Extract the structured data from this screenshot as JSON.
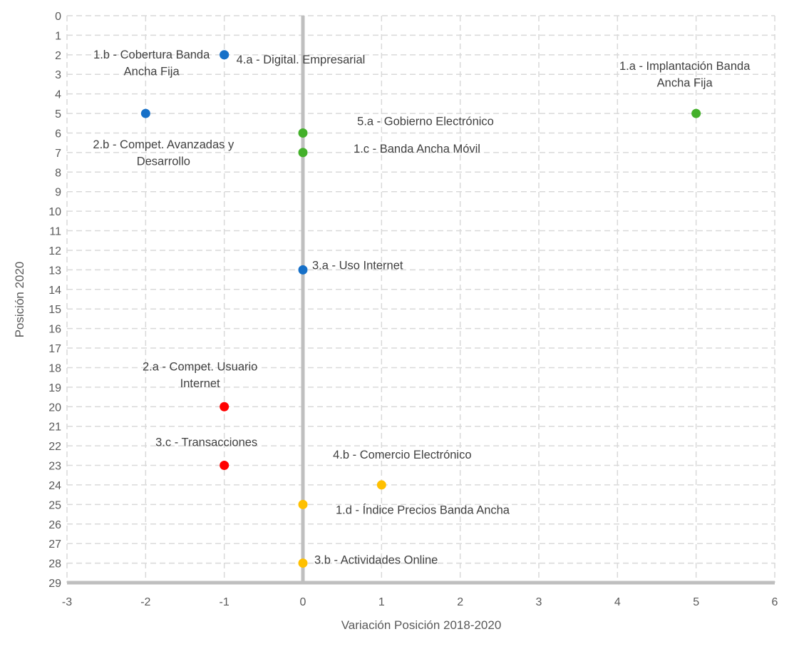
{
  "chart_data": {
    "type": "scatter",
    "xlabel": "Variación Posición 2018-2020",
    "ylabel": "Posición 2020",
    "xlim": [
      -3,
      6
    ],
    "ylim": [
      0,
      29
    ],
    "y_reversed": true,
    "grid": true,
    "xticks": [
      -3,
      -2,
      -1,
      0,
      1,
      2,
      3,
      4,
      5,
      6
    ],
    "yticks": [
      0,
      1,
      2,
      3,
      4,
      5,
      6,
      7,
      8,
      9,
      10,
      11,
      12,
      13,
      14,
      15,
      16,
      17,
      18,
      19,
      20,
      21,
      22,
      23,
      24,
      25,
      26,
      27,
      28,
      29
    ],
    "colors": {
      "blue": "#1670C8",
      "green": "#43B02A",
      "red": "#FF0000",
      "yellow": "#FFC000",
      "axis": "#BFBFBF",
      "grid": "#D9D9D9",
      "text": "#404040"
    },
    "points": [
      {
        "label": [
          "1.b - Cobertura Banda",
          "Ancha Fija"
        ],
        "x": -1,
        "y": 2,
        "color": "blue"
      },
      {
        "label": [
          "4.a - Digital. Empresarial"
        ],
        "x": -1,
        "y": 2,
        "color": "blue"
      },
      {
        "label": [
          "2.b - Compet. Avanzadas y",
          "Desarrollo"
        ],
        "x": -2,
        "y": 5,
        "color": "blue"
      },
      {
        "label": [
          "1.a - Implantación Banda",
          "Ancha Fija"
        ],
        "x": 5,
        "y": 5,
        "color": "green"
      },
      {
        "label": [
          "5.a - Gobierno Electrónico"
        ],
        "x": 0,
        "y": 6,
        "color": "green"
      },
      {
        "label": [
          "1.c - Banda Ancha Móvil"
        ],
        "x": 0,
        "y": 7,
        "color": "green"
      },
      {
        "label": [
          "3.a - Uso Internet"
        ],
        "x": 0,
        "y": 13,
        "color": "blue"
      },
      {
        "label": [
          "2.a - Compet. Usuario",
          "Internet"
        ],
        "x": -1,
        "y": 20,
        "color": "red"
      },
      {
        "label": [
          "3.c - Transacciones"
        ],
        "x": -1,
        "y": 23,
        "color": "red"
      },
      {
        "label": [
          "4.b - Comercio Electrónico"
        ],
        "x": 1,
        "y": 24,
        "color": "yellow"
      },
      {
        "label": [
          "1.d - Índice Precios Banda Ancha"
        ],
        "x": 0,
        "y": 25,
        "color": "yellow"
      },
      {
        "label": [
          "3.b - Actividades Online"
        ],
        "x": 0,
        "y": 28,
        "color": "yellow"
      }
    ]
  }
}
